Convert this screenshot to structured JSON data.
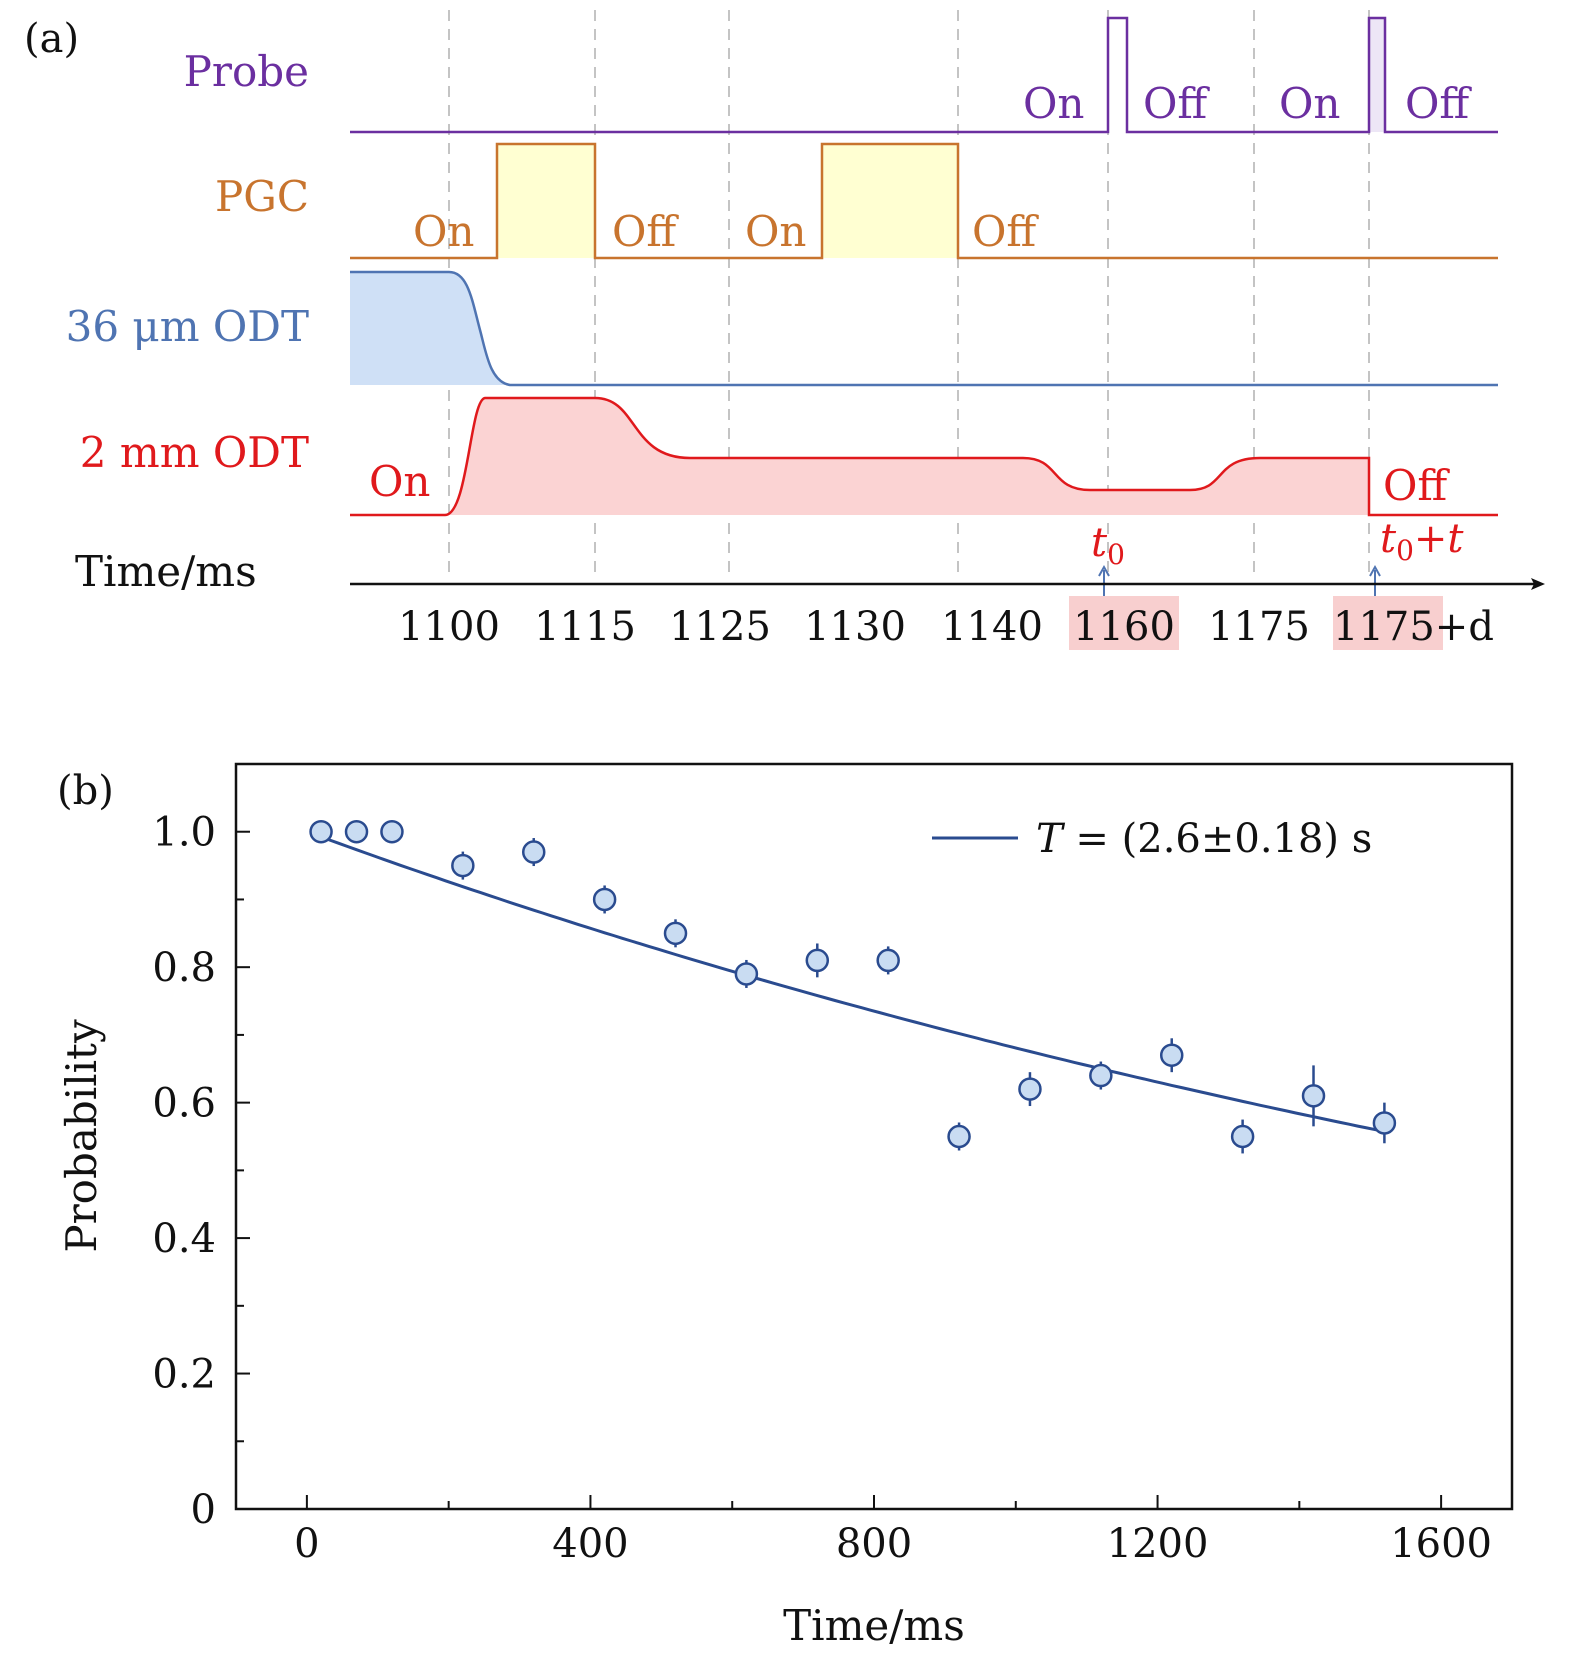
{
  "panel_a": {
    "label": "(a)",
    "rows": [
      {
        "id": "probe",
        "label": "Probe",
        "color": "#6b2fa0",
        "fill": "#ede6f6",
        "states": [
          {
            "text": "On"
          },
          {
            "text": "Off"
          },
          {
            "text": "On"
          },
          {
            "text": "Off"
          }
        ]
      },
      {
        "id": "pgc",
        "label": "PGC",
        "color": "#c8742e",
        "fill": "#ffffd2",
        "states": [
          {
            "text": "On"
          },
          {
            "text": "Off"
          },
          {
            "text": "On"
          },
          {
            "text": "Off"
          }
        ]
      },
      {
        "id": "odt36",
        "label": "36 μm ODT",
        "color": "#4f74b2",
        "fill": "#cfe0f6",
        "states": []
      },
      {
        "id": "odt2",
        "label": "2 mm ODT",
        "color": "#e0191c",
        "fill": "#fbd3d3",
        "states": [
          {
            "text": "On"
          },
          {
            "text": "Off"
          }
        ]
      }
    ],
    "time_axis": {
      "label": "Time/ms",
      "ticks": [
        "1100",
        "1115",
        "1125",
        "1130",
        "1140",
        "1160",
        "1175",
        "1175+d"
      ],
      "highlighted": [
        "1160",
        "1175"
      ],
      "highlight_color": "#f8cfcf"
    },
    "markers": [
      {
        "text": "t0",
        "tick": "1160"
      },
      {
        "text": "t0+t",
        "tick": "1175+d"
      }
    ],
    "marker_color": "#e0191c",
    "arrow_color": "#4f74b2"
  },
  "chart_data": {
    "type": "scatter",
    "panel_label": "(b)",
    "xlabel": "Time/ms",
    "ylabel": "Probability",
    "xlim": [
      -100,
      1700
    ],
    "ylim": [
      0,
      1.1
    ],
    "x_ticks": [
      0,
      400,
      800,
      1200,
      1600
    ],
    "y_ticks": [
      0,
      0.2,
      0.4,
      0.6,
      0.8,
      1.0
    ],
    "y_tick_labels": [
      "0",
      "0.2",
      "0.4",
      "0.6",
      "0.8",
      "1.0"
    ],
    "grid": false,
    "marker_fill": "#c9dcf2",
    "line_color": "#2a4b8f",
    "series": [
      {
        "kind": "points",
        "x": [
          20,
          70,
          120,
          220,
          320,
          420,
          520,
          620,
          720,
          820,
          920,
          1020,
          1120,
          1220,
          1320,
          1420,
          1520
        ],
        "y": [
          1.0,
          1.0,
          1.0,
          0.95,
          0.97,
          0.9,
          0.85,
          0.79,
          0.81,
          0.81,
          0.55,
          0.62,
          0.64,
          0.67,
          0.55,
          0.61,
          0.57
        ],
        "yerr": [
          0.0,
          0.0,
          0.0,
          0.015,
          0.015,
          0.01,
          0.015,
          0.02,
          0.025,
          0.02,
          0.02,
          0.025,
          0.02,
          0.025,
          0.025,
          0.045,
          0.03
        ]
      },
      {
        "kind": "fit",
        "name": "T = (2.6±0.18) s",
        "x_range": [
          20,
          1520
        ],
        "amplitude": 1.0,
        "tau_ms": 2600
      }
    ],
    "legend_position": "top-right"
  }
}
